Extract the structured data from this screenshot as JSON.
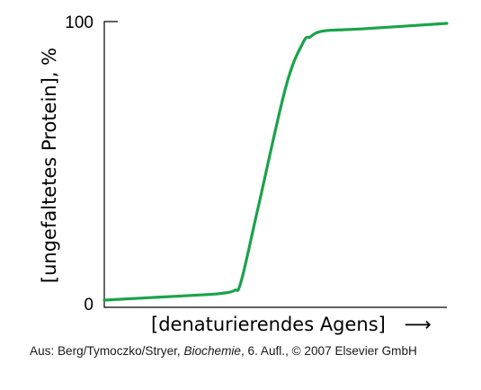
{
  "chart_data": {
    "type": "line",
    "title": "",
    "xlabel": "[denaturierendes Agens]",
    "xlabel_arrow": "⟶",
    "ylabel": "[ungefaltetes Protein], %",
    "ylim": [
      0,
      100
    ],
    "y_ticks": [
      "0",
      "100"
    ],
    "xlim": [
      0,
      100
    ],
    "grid": false,
    "legend": "none",
    "series": [
      {
        "color": "#1aa34a",
        "x": [
          0,
          15,
          30,
          34.5,
          38,
          40,
          45,
          53,
          58,
          60,
          61.5,
          63,
          66,
          75,
          100
        ],
        "y": [
          0,
          1,
          2,
          2.5,
          3.5,
          7,
          34,
          77,
          93,
          95,
          96.3,
          97,
          97.5,
          98,
          100
        ]
      }
    ]
  },
  "caption": {
    "prefix": "Aus: Berg/Tymoczko/Stryer, ",
    "book": "Biochemie",
    "suffix": ", 6. Aufl., © 2007 Elsevier GmbH"
  }
}
